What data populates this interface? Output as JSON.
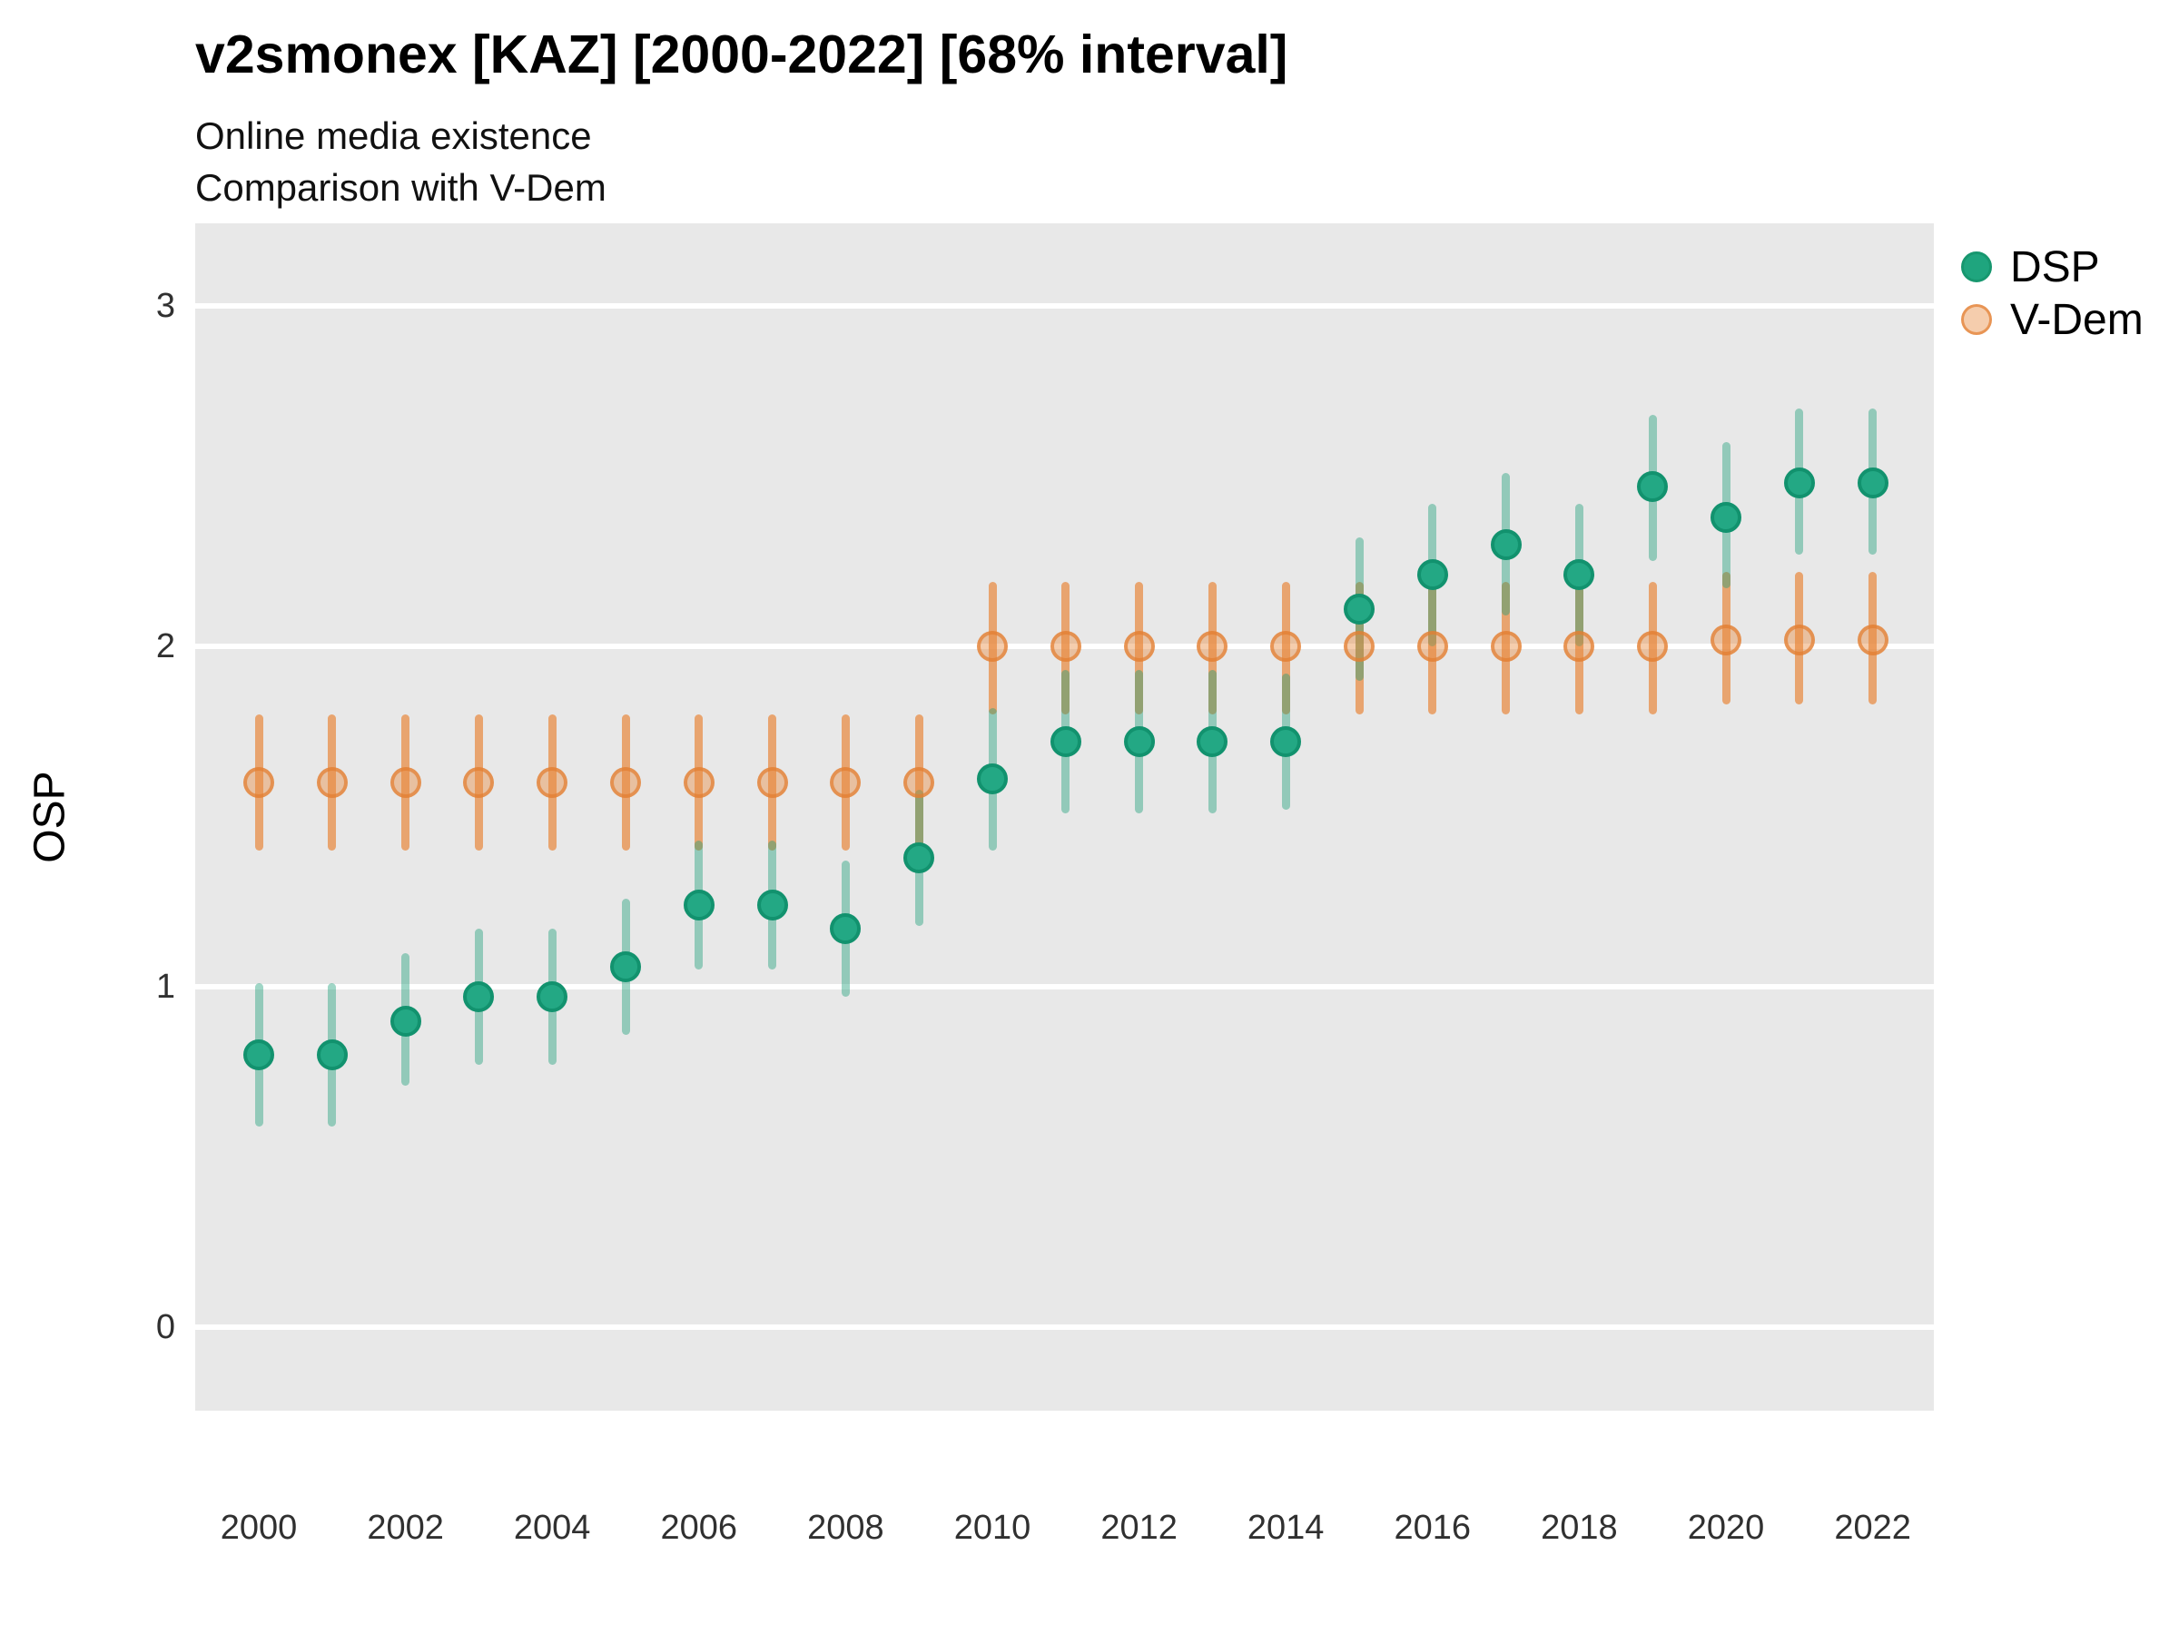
{
  "header": {
    "title": "v2smonex [KAZ] [2000-2022] [68% interval]",
    "subtitle1": "Online media existence",
    "subtitle2": "Comparison with V-Dem"
  },
  "axes": {
    "y_label": "OSP",
    "y_ticks": [
      0,
      1,
      2,
      3
    ],
    "x_ticks": [
      2000,
      2002,
      2004,
      2006,
      2008,
      2010,
      2012,
      2014,
      2016,
      2018,
      2020,
      2022
    ]
  },
  "colors": {
    "panel_background": "#E8E8E8",
    "gridline": "#FFFFFF",
    "dsp_point": "#23A884",
    "dsp_ring": "#12926E",
    "dsp_bar": "rgba(27,158,119,0.42)",
    "vdem_point_fill": "rgba(232,136,60,0.42)",
    "vdem_ring": "rgba(226,125,48,0.70)",
    "vdem_bar": "rgba(232,136,60,0.70)"
  },
  "chart_data": {
    "type": "scatter",
    "title": "v2smonex [KAZ] [2000-2022] [68% interval]",
    "subtitle": "Online media existence / Comparison with V-Dem",
    "interval_note": "68% interval",
    "xlabel": "",
    "ylabel": "OSP",
    "x": [
      2000,
      2001,
      2002,
      2003,
      2004,
      2005,
      2006,
      2007,
      2008,
      2009,
      2010,
      2011,
      2012,
      2013,
      2014,
      2015,
      2016,
      2017,
      2018,
      2019,
      2020,
      2021,
      2022
    ],
    "x_ticks": [
      2000,
      2002,
      2004,
      2006,
      2008,
      2010,
      2012,
      2014,
      2016,
      2018,
      2020,
      2022
    ],
    "y_ticks": [
      0,
      1,
      2,
      3
    ],
    "ylim": [
      -0.24,
      3.24
    ],
    "grid": "horizontal-white-on-gray",
    "legend_position": "right-top",
    "series": [
      {
        "name": "DSP",
        "color": "#23A884",
        "values": [
          0.8,
          0.8,
          0.9,
          0.97,
          0.97,
          1.06,
          1.24,
          1.24,
          1.17,
          1.38,
          1.61,
          1.72,
          1.72,
          1.72,
          1.72,
          2.11,
          2.21,
          2.3,
          2.21,
          2.47,
          2.38,
          2.48,
          2.48
        ],
        "lo": [
          0.59,
          0.59,
          0.71,
          0.77,
          0.77,
          0.86,
          1.05,
          1.05,
          0.97,
          1.18,
          1.4,
          1.51,
          1.51,
          1.51,
          1.52,
          1.9,
          2.0,
          2.09,
          2.0,
          2.25,
          2.17,
          2.27,
          2.27
        ],
        "hi": [
          1.01,
          1.01,
          1.1,
          1.17,
          1.17,
          1.26,
          1.43,
          1.43,
          1.37,
          1.58,
          1.82,
          1.93,
          1.93,
          1.93,
          1.92,
          2.32,
          2.42,
          2.51,
          2.42,
          2.68,
          2.6,
          2.7,
          2.7
        ]
      },
      {
        "name": "V-Dem",
        "color": "#E8883C",
        "values": [
          1.6,
          1.6,
          1.6,
          1.6,
          1.6,
          1.6,
          1.6,
          1.6,
          1.6,
          1.6,
          2.0,
          2.0,
          2.0,
          2.0,
          2.0,
          2.0,
          2.0,
          2.0,
          2.0,
          2.0,
          2.02,
          2.02,
          2.02
        ],
        "lo": [
          1.4,
          1.4,
          1.4,
          1.4,
          1.4,
          1.4,
          1.4,
          1.4,
          1.4,
          1.4,
          1.8,
          1.8,
          1.8,
          1.8,
          1.8,
          1.8,
          1.8,
          1.8,
          1.8,
          1.8,
          1.83,
          1.83,
          1.83
        ],
        "hi": [
          1.8,
          1.8,
          1.8,
          1.8,
          1.8,
          1.8,
          1.8,
          1.8,
          1.8,
          1.8,
          2.19,
          2.19,
          2.19,
          2.19,
          2.19,
          2.19,
          2.19,
          2.19,
          2.19,
          2.19,
          2.22,
          2.22,
          2.22
        ]
      }
    ]
  }
}
